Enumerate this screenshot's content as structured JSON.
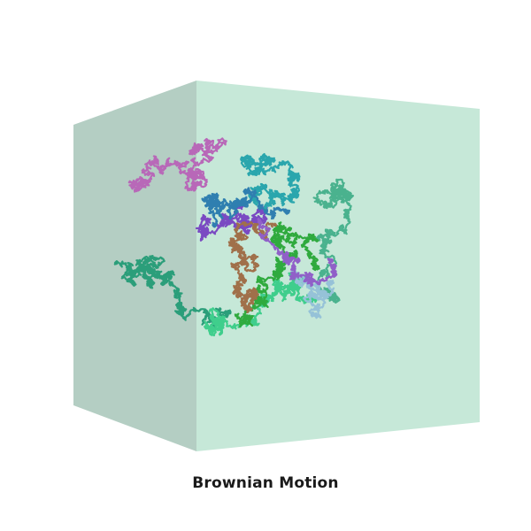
{
  "title": "Brownian Motion",
  "colors": {
    "cube_front": "#c6e8d8",
    "cube_side": "#b4cec3",
    "background": "#ffffff"
  },
  "walks": [
    {
      "name": "walk-magenta",
      "color": "#b868b8"
    },
    {
      "name": "walk-purple",
      "color": "#7a4ac2"
    },
    {
      "name": "walk-teal",
      "color": "#2aa6ad"
    },
    {
      "name": "walk-steel-blue",
      "color": "#2f7fb0"
    },
    {
      "name": "walk-sea-green",
      "color": "#4ab28e"
    },
    {
      "name": "walk-jade",
      "color": "#2b9e7a"
    },
    {
      "name": "walk-mint",
      "color": "#3fce8c"
    },
    {
      "name": "walk-green",
      "color": "#2faa3e"
    },
    {
      "name": "walk-brown",
      "color": "#a0704a"
    },
    {
      "name": "walk-light-blue",
      "color": "#96c2d8"
    },
    {
      "name": "walk-violet",
      "color": "#9060c8"
    }
  ]
}
